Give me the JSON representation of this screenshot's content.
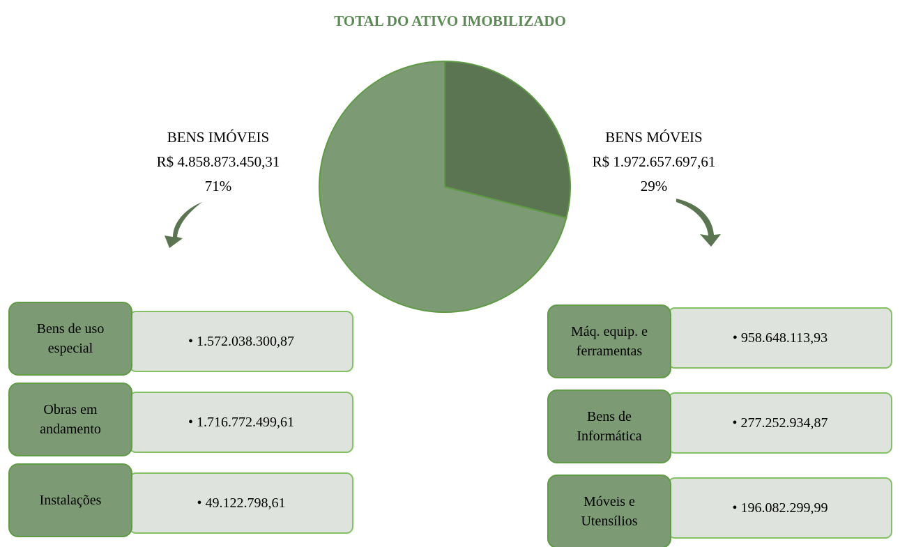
{
  "chart_data": {
    "type": "pie",
    "title": "TOTAL DO ATIVO IMOBILIZADO",
    "categories": [
      "BENS MÓVEIS",
      "BENS IMÓVEIS"
    ],
    "values": [
      29,
      71
    ],
    "value_labels": [
      "29%",
      "71%"
    ],
    "amounts": [
      "R$ 1.972.657.697,61",
      "R$ 4.858.873.450,31"
    ],
    "colors": [
      "#5b7553",
      "#7c9b74"
    ]
  },
  "groups": [
    {
      "items": [
        {
          "label": "Bens de uso especial",
          "value": "1.572.038.300,87"
        },
        {
          "label": "Obras em andamento",
          "value": "1.716.772.499,61"
        },
        {
          "label": "Instalações",
          "value": "49.122.798,61"
        }
      ]
    },
    {
      "items": [
        {
          "label": "Máq. equip. e ferramentas",
          "value": "958.648.113,93"
        },
        {
          "label": "Bens de Informática",
          "value": "277.252.934,87"
        },
        {
          "label": "Móveis e Utensílios",
          "value": "196.082.299,99"
        }
      ]
    }
  ]
}
